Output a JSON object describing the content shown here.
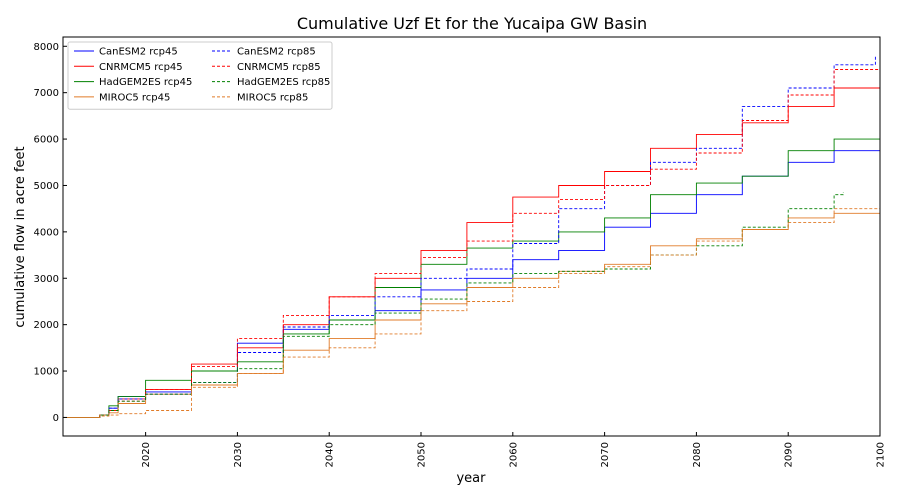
{
  "chart_data": {
    "type": "line",
    "title": "Cumulative Uzf Et for the Yucaipa GW Basin",
    "xlabel": "year",
    "ylabel": "cumulative flow in acre feet",
    "xlim": [
      2011,
      2100
    ],
    "ylim": [
      -400,
      8200
    ],
    "x_ticks": [
      2020,
      2030,
      2040,
      2050,
      2060,
      2070,
      2080,
      2090,
      2100
    ],
    "y_ticks": [
      0,
      1000,
      2000,
      3000,
      4000,
      5000,
      6000,
      7000,
      8000
    ],
    "grid": false,
    "legend_position": "top-left",
    "legend_columns": 2,
    "series": [
      {
        "name": "CanESM2 rcp45",
        "color": "#0000ff",
        "dash": "solid",
        "x": [
          2011,
          2015,
          2016,
          2017,
          2020,
          2025,
          2030,
          2035,
          2040,
          2045,
          2050,
          2055,
          2060,
          2065,
          2070,
          2075,
          2080,
          2085,
          2090,
          2095,
          2100
        ],
        "y": [
          0,
          50,
          200,
          450,
          550,
          1000,
          1600,
          1900,
          2100,
          2300,
          2750,
          3000,
          3400,
          3600,
          4100,
          4400,
          4800,
          5200,
          5500,
          5750,
          5950
        ]
      },
      {
        "name": "CNRMCM5 rcp45",
        "color": "#ff0000",
        "dash": "solid",
        "x": [
          2011,
          2015,
          2016,
          2017,
          2020,
          2025,
          2030,
          2035,
          2040,
          2045,
          2050,
          2055,
          2060,
          2065,
          2070,
          2075,
          2080,
          2085,
          2090,
          2095,
          2100
        ],
        "y": [
          0,
          50,
          150,
          400,
          600,
          1150,
          1500,
          2000,
          2600,
          3000,
          3600,
          4200,
          4750,
          5000,
          5300,
          5800,
          6100,
          6350,
          6700,
          7100,
          7450
        ]
      },
      {
        "name": "HadGEM2ES rcp45",
        "color": "#008000",
        "dash": "solid",
        "x": [
          2011,
          2015,
          2016,
          2017,
          2020,
          2025,
          2030,
          2035,
          2040,
          2045,
          2050,
          2055,
          2060,
          2065,
          2070,
          2075,
          2080,
          2085,
          2090,
          2095,
          2100
        ],
        "y": [
          0,
          50,
          250,
          450,
          800,
          1000,
          1200,
          1800,
          2100,
          2800,
          3300,
          3650,
          3800,
          4000,
          4300,
          4800,
          5050,
          5200,
          5750,
          6000,
          6300
        ]
      },
      {
        "name": "MIROC5 rcp45",
        "color": "#e07b28",
        "dash": "solid",
        "x": [
          2011,
          2015,
          2016,
          2017,
          2020,
          2025,
          2030,
          2035,
          2040,
          2045,
          2050,
          2055,
          2060,
          2065,
          2070,
          2075,
          2080,
          2085,
          2090,
          2095,
          2100
        ],
        "y": [
          0,
          50,
          100,
          300,
          500,
          700,
          950,
          1450,
          1700,
          2100,
          2450,
          2800,
          3000,
          3150,
          3300,
          3700,
          3850,
          4050,
          4300,
          4400,
          4750
        ]
      },
      {
        "name": "CanESM2 rcp85",
        "color": "#0000ff",
        "dash": "dashed",
        "x": [
          2011,
          2015,
          2016,
          2017,
          2020,
          2025,
          2030,
          2035,
          2040,
          2045,
          2050,
          2055,
          2060,
          2065,
          2070,
          2075,
          2080,
          2085,
          2090,
          2095,
          2099.5
        ],
        "y": [
          0,
          50,
          200,
          400,
          500,
          750,
          1400,
          1950,
          2200,
          2600,
          3000,
          3200,
          3750,
          4500,
          5000,
          5500,
          5800,
          6700,
          7100,
          7600,
          7800
        ]
      },
      {
        "name": "CNRMCM5 rcp85",
        "color": "#ff0000",
        "dash": "dashed",
        "x": [
          2011,
          2015,
          2016,
          2017,
          2020,
          2025,
          2030,
          2035,
          2040,
          2045,
          2050,
          2055,
          2060,
          2065,
          2070,
          2075,
          2080,
          2085,
          2090,
          2095,
          2100
        ],
        "y": [
          0,
          50,
          150,
          350,
          600,
          1100,
          1700,
          2200,
          2600,
          3100,
          3450,
          3800,
          4400,
          4700,
          5000,
          5350,
          5700,
          6400,
          6950,
          7500,
          7800
        ]
      },
      {
        "name": "HadGEM2ES rcp85",
        "color": "#008000",
        "dash": "dashed",
        "x": [
          2011,
          2015,
          2016,
          2017,
          2020,
          2025,
          2030,
          2035,
          2040,
          2045,
          2050,
          2055,
          2060,
          2065,
          2070,
          2075,
          2080,
          2085,
          2090,
          2095,
          2096
        ],
        "y": [
          0,
          50,
          150,
          350,
          500,
          750,
          1050,
          1750,
          2000,
          2250,
          2550,
          2900,
          3100,
          3150,
          3200,
          3500,
          3700,
          4100,
          4500,
          4800,
          4850
        ]
      },
      {
        "name": "MIROC5 rcp85",
        "color": "#e07b28",
        "dash": "dashed",
        "x": [
          2011,
          2015,
          2016,
          2017,
          2020,
          2025,
          2030,
          2035,
          2040,
          2045,
          2050,
          2055,
          2060,
          2065,
          2070,
          2075,
          2080,
          2085,
          2090,
          2095,
          2100
        ],
        "y": [
          0,
          30,
          50,
          80,
          150,
          650,
          950,
          1300,
          1500,
          1800,
          2300,
          2500,
          2800,
          3100,
          3250,
          3500,
          3800,
          4050,
          4200,
          4500,
          4700
        ]
      }
    ]
  }
}
